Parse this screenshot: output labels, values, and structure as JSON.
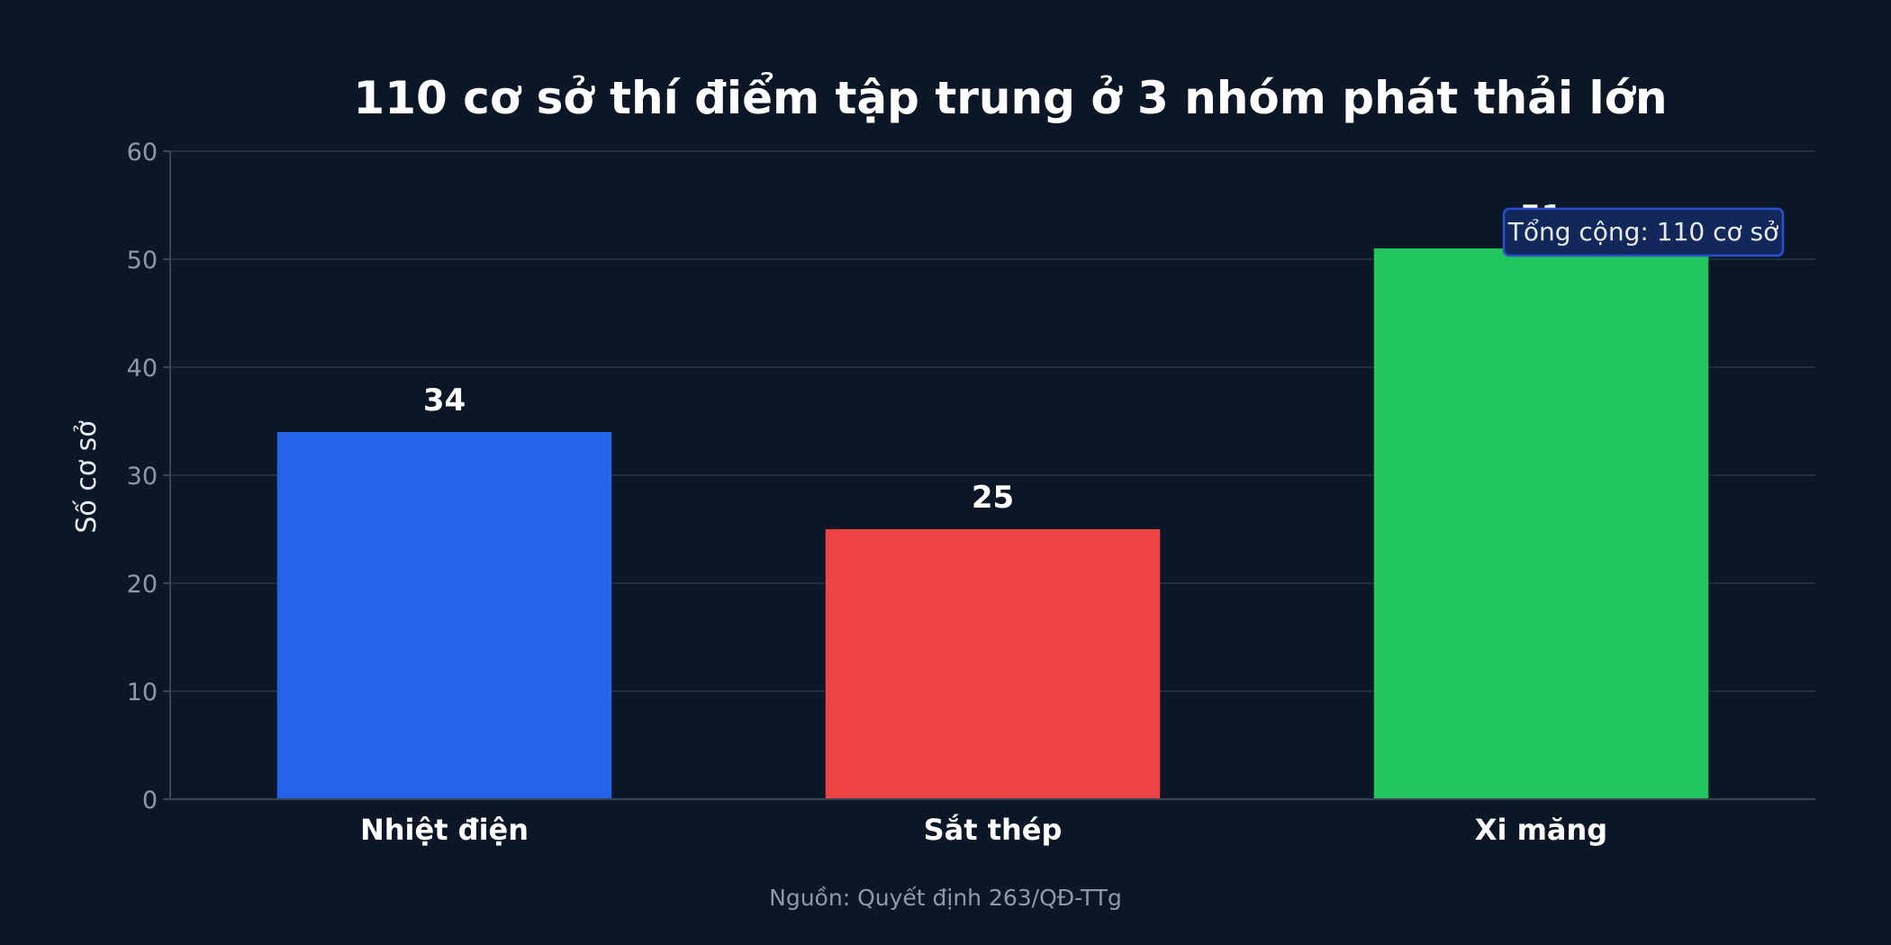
{
  "chart_data": {
    "type": "bar",
    "title": "110 cơ sở thí điểm tập trung ở 3 nhóm phát thải lớn",
    "xlabel": "",
    "ylabel": "Số cơ sở",
    "categories": [
      "Nhiệt điện",
      "Sắt thép",
      "Xi măng"
    ],
    "values": [
      34,
      25,
      51
    ],
    "value_labels": [
      "34",
      "25",
      "51"
    ],
    "colors": [
      "#2563eb",
      "#ef4444",
      "#22c55e"
    ],
    "ylim": [
      0,
      60
    ],
    "yticks": [
      0,
      10,
      20,
      30,
      40,
      50,
      60
    ],
    "grid": true,
    "annotation": "Tổng cộng: 110 cơ sở",
    "source": "Nguồn: Quyết định 263/QĐ-TTg"
  },
  "colors": {
    "background": "#0b1727",
    "annotation_border": "#2b4fd1",
    "annotation_fill": "#12285a"
  }
}
